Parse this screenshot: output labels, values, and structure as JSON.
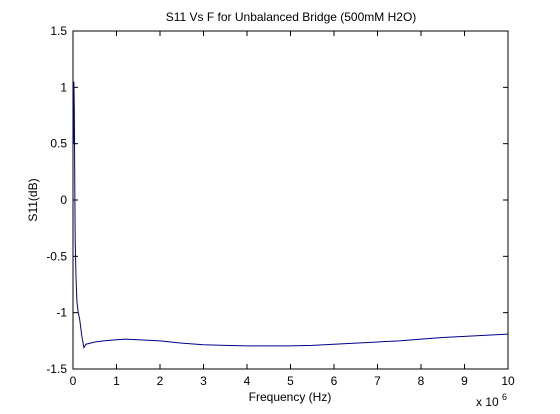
{
  "chart_data": {
    "type": "line",
    "title": "S11 Vs F for Unbalanced Bridge (500mM H2O)",
    "xlabel": "Frequency (Hz)",
    "ylabel": "S11(dB)",
    "x_multiplier_base": "x 10",
    "x_multiplier_exp": "6",
    "xlim": [
      0,
      10
    ],
    "ylim": [
      -1.5,
      1.5
    ],
    "grid": false,
    "x_ticks": [
      "0",
      "1",
      "2",
      "3",
      "4",
      "5",
      "6",
      "7",
      "8",
      "9",
      "10"
    ],
    "y_ticks": [
      "-1.5",
      "-1",
      "-0.5",
      "0",
      "0.5",
      "1",
      "1.5"
    ],
    "line_color": "#00008b",
    "series": [
      {
        "x": [
          0.01,
          0.02,
          0.03,
          0.04,
          0.05,
          0.07,
          0.09,
          0.12,
          0.15,
          0.2,
          0.25,
          0.3,
          0.4,
          0.5,
          0.7,
          1.0,
          1.2,
          1.5,
          2.0,
          2.5,
          3.0,
          3.5,
          4.0,
          4.5,
          5.0,
          5.5,
          6.0,
          6.5,
          7.0,
          7.5,
          8.0,
          8.5,
          9.0,
          9.5,
          10.0
        ],
        "y": [
          0.5,
          1.05,
          0.8,
          0.2,
          -0.35,
          -0.7,
          -0.9,
          -1.0,
          -1.05,
          -1.2,
          -1.31,
          -1.28,
          -1.27,
          -1.26,
          -1.25,
          -1.24,
          -1.235,
          -1.24,
          -1.25,
          -1.27,
          -1.285,
          -1.29,
          -1.295,
          -1.295,
          -1.295,
          -1.29,
          -1.28,
          -1.27,
          -1.26,
          -1.25,
          -1.235,
          -1.22,
          -1.21,
          -1.2,
          -1.19
        ]
      }
    ]
  }
}
